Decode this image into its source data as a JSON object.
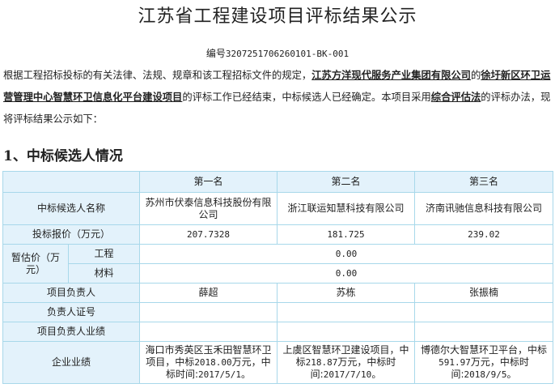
{
  "title": "江苏省工程建设项目评标结果公示",
  "code_label": "编号",
  "code": "3207251706260101-BK-001",
  "intro": {
    "t1": "根据工程招标投标的有关法律、法规、规章和该工程招标文件的规定，",
    "agency": "江苏方洋现代服务产业集团有限公司",
    "t2": "的",
    "project": "徐圩新区环卫运营管理中心智慧环卫信息化平台建设项目",
    "t3": "的评标工作已经结束，中标候选人已经确定。本项目采用",
    "method": "综合评估法",
    "t4": "的评标办法，现将评标结果公示如下："
  },
  "section_title": "1、中标候选人情况",
  "table": {
    "ranks": [
      "第一名",
      "第二名",
      "第三名"
    ],
    "row_name_label": "中标候选人名称",
    "names": [
      "苏州市伏泰信息科技股份有限公司",
      "浙江联运知慧科技有限公司",
      "济南讯驰信息科技有限公司"
    ],
    "row_price_label": "投标报价（万元）",
    "prices": [
      "207.7328",
      "181.725",
      "239.02"
    ],
    "provisional_label": "暂估价（万元）",
    "engineering_label": "工程",
    "engineering_value": "0.00",
    "material_label": "材料",
    "material_value": "0.00",
    "manager_label": "项目负责人",
    "managers": [
      "薛超",
      "苏栋",
      "张振楠"
    ],
    "cert_label": "负责人证号",
    "manager_perf_label": "项目负责人业绩",
    "company_perf_label": "企业业绩",
    "company_perf": [
      {
        "a": "海口市秀英区玉禾田智慧环卫项目，中标",
        "amt": "2018.00",
        "b": "万元，中标时间:",
        "date": "2017/5/1",
        "c": "。"
      },
      {
        "a": "上虞区智慧环卫建设项目，中标",
        "amt": "218.87",
        "b": "万元，中标时间:",
        "date": "2017/7/10",
        "c": "。"
      },
      {
        "a": "博德尔大智慧环卫平台，中标",
        "amt": "591.97",
        "b": "万元，中标时间:",
        "date": "2018/9/5",
        "c": "。"
      }
    ]
  }
}
